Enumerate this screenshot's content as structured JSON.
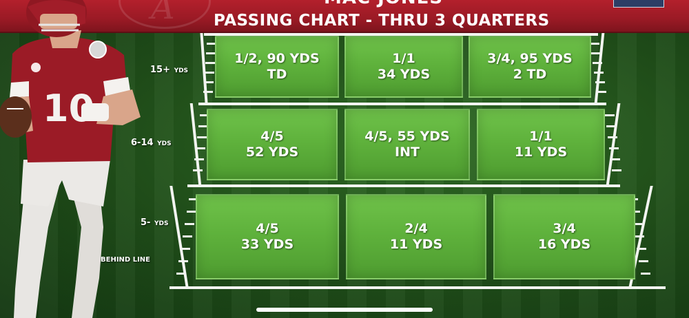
{
  "header": {
    "player_name": "MAC JONES",
    "title": "PASSING CHART - THRU 3 QUARTERS"
  },
  "player": {
    "jersey_number": "10"
  },
  "row_labels": [
    {
      "main": "15+",
      "unit": "YDS"
    },
    {
      "main": "6-14",
      "unit": "YDS"
    },
    {
      "main": "5-",
      "unit": "YDS"
    },
    {
      "main": "",
      "unit": "BEHIND LINE"
    }
  ],
  "zones": {
    "deep": [
      {
        "line1": "1/2, 90 YDS",
        "line2": "TD"
      },
      {
        "line1": "1/1",
        "line2": "34 YDS"
      },
      {
        "line1": "3/4, 95 YDS",
        "line2": "2 TD"
      }
    ],
    "mid": [
      {
        "line1": "4/5",
        "line2": "52 YDS"
      },
      {
        "line1": "4/5, 55 YDS",
        "line2": "INT"
      },
      {
        "line1": "1/1",
        "line2": "11 YDS"
      }
    ],
    "short": [
      {
        "line1": "4/5",
        "line2": "33 YDS"
      },
      {
        "line1": "2/4",
        "line2": "11 YDS"
      },
      {
        "line1": "3/4",
        "line2": "16 YDS"
      }
    ]
  },
  "colors": {
    "banner": "#9a1a25",
    "zone_green": "#5fb23c",
    "turf": "#1f4d19"
  }
}
